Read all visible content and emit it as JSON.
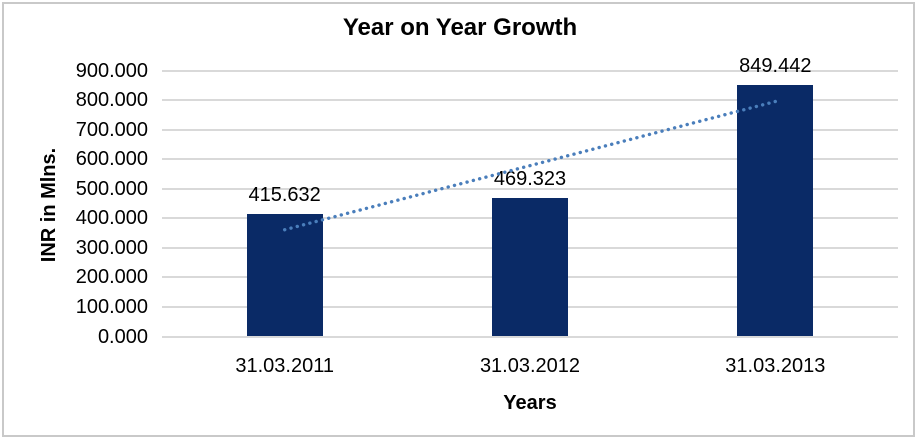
{
  "window": {
    "background": "#ffffff",
    "frame_border_color": "#c9c9c9"
  },
  "chart_data": {
    "type": "bar",
    "title": "Year on Year Growth",
    "xlabel": "Years",
    "ylabel": "INR in Mlns.",
    "categories": [
      "31.03.2011",
      "31.03.2012",
      "31.03.2013"
    ],
    "values": [
      415.632,
      469.323,
      849.442
    ],
    "value_labels": [
      "415.632",
      "469.323",
      "849.442"
    ],
    "ylim": [
      0,
      900
    ],
    "ytick_step": 100,
    "ytick_labels": [
      "0.000",
      "100.000",
      "200.000",
      "300.000",
      "400.000",
      "500.000",
      "600.000",
      "700.000",
      "800.000",
      "900.000"
    ],
    "grid": true,
    "legend": "none",
    "bar_color": "#0a2a66",
    "gridline_color": "#d9d9d9",
    "text_color": "#000000",
    "trendline": {
      "type": "linear",
      "style": "dotted",
      "color": "#4a7ebb"
    }
  }
}
